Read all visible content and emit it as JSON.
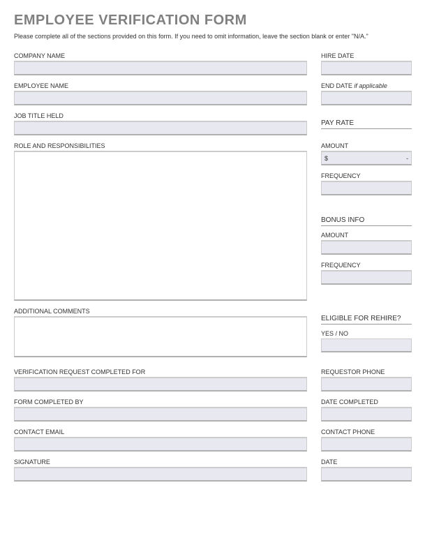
{
  "title": "EMPLOYEE VERIFICATION FORM",
  "instructions": "Please complete all of the sections provided on this form. If you need to omit information, leave the section blank or enter \"N/A.\"",
  "labels": {
    "company_name": "COMPANY NAME",
    "hire_date": "HIRE DATE",
    "employee_name": "EMPLOYEE NAME",
    "end_date": "END DATE",
    "end_date_suffix": "if applicable",
    "job_title": "JOB TITLE HELD",
    "role_resp": "ROLE AND RESPONSIBILITIES",
    "pay_rate": "PAY RATE",
    "amount": "AMOUNT",
    "frequency": "FREQUENCY",
    "bonus_info": "BONUS INFO",
    "additional_comments": "ADDITIONAL COMMENTS",
    "eligible_rehire": "ELIGIBLE FOR REHIRE?",
    "yes_no": "YES / NO",
    "verification_completed_for": "VERIFICATION REQUEST COMPLETED FOR",
    "requestor_phone": "REQUESTOR PHONE",
    "form_completed_by": "FORM COMPLETED BY",
    "date_completed": "DATE COMPLETED",
    "contact_email": "CONTACT EMAIL",
    "contact_phone": "CONTACT PHONE",
    "signature": "SIGNATURE",
    "date": "DATE"
  },
  "values": {
    "company_name": "",
    "hire_date": "",
    "employee_name": "",
    "end_date": "",
    "job_title": "",
    "role_resp": "",
    "pay_amount_prefix": "$",
    "pay_amount_suffix": "-",
    "pay_frequency": "",
    "bonus_amount": "",
    "bonus_frequency": "",
    "additional_comments": "",
    "yes_no": "",
    "verification_completed_for": "",
    "requestor_phone": "",
    "form_completed_by": "",
    "date_completed": "",
    "contact_email": "",
    "contact_phone": "",
    "signature": "",
    "date": ""
  },
  "style": {
    "title_color": "#808080",
    "text_color": "#333333",
    "input_bg": "#e8e8f0",
    "border_color": "#cccccc",
    "border_bottom_color": "#b0b0b0",
    "page_bg": "#ffffff",
    "title_fontsize": 20,
    "label_fontsize": 9,
    "wide_field_width": 420,
    "narrow_field_width": 130,
    "input_height": 20,
    "textarea_tall_height": 214,
    "textarea_med_height": 58
  }
}
